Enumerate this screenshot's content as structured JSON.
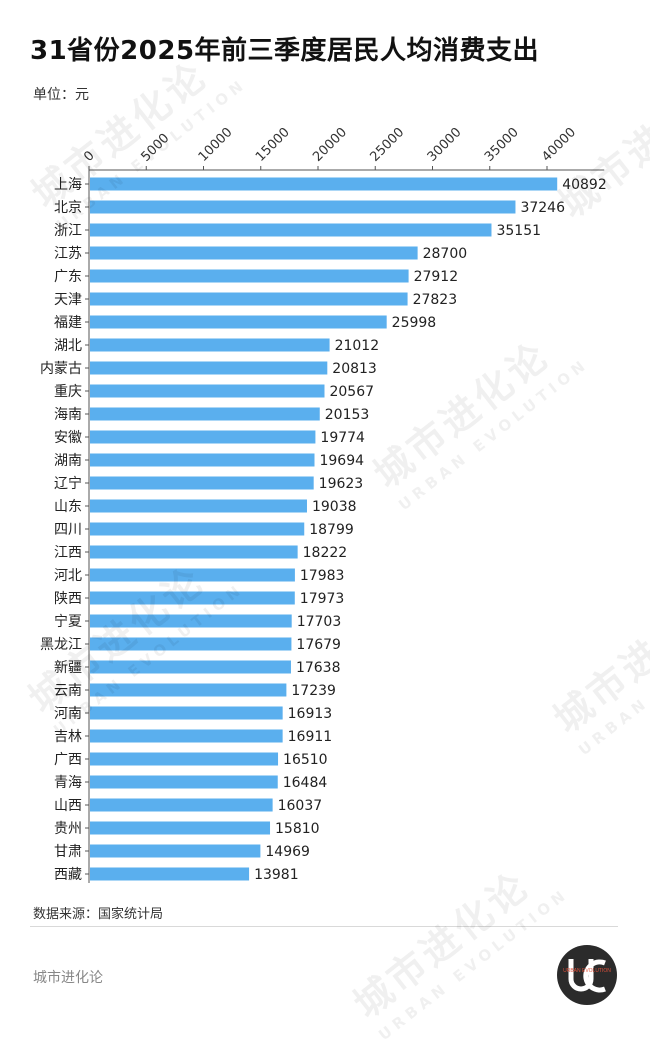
{
  "page": {
    "title": "31省份2025年前三季度居民人均消费支出",
    "unit": "单位：元",
    "source": "数据来源：国家统计局",
    "brand": "城市进化论",
    "logo_text": "URBAN EVOLUTION",
    "watermark_cn": "城市进化论",
    "watermark_en": "URBAN EVOLUTION"
  },
  "colors": {
    "bar": "#5aafee",
    "axis": "#555555",
    "text": "#222222"
  },
  "chart_data": {
    "type": "bar",
    "orientation": "horizontal",
    "title": "31省份2025年前三季度居民人均消费支出",
    "xlabel": "",
    "ylabel": "",
    "unit": "单位：元",
    "xlim": [
      0,
      45000
    ],
    "ticks": [
      0,
      5000,
      10000,
      15000,
      20000,
      25000,
      30000,
      35000,
      40000
    ],
    "x_axis_position": "top",
    "grid": false,
    "categories": [
      "上海",
      "北京",
      "浙江",
      "江苏",
      "广东",
      "天津",
      "福建",
      "湖北",
      "内蒙古",
      "重庆",
      "海南",
      "安徽",
      "湖南",
      "辽宁",
      "山东",
      "四川",
      "江西",
      "河北",
      "陕西",
      "宁夏",
      "黑龙江",
      "新疆",
      "云南",
      "河南",
      "吉林",
      "广西",
      "青海",
      "山西",
      "贵州",
      "甘肃",
      "西藏"
    ],
    "values": [
      40892,
      37246,
      35151,
      28700,
      27912,
      27823,
      25998,
      21012,
      20813,
      20567,
      20153,
      19774,
      19694,
      19623,
      19038,
      18799,
      18222,
      17983,
      17973,
      17703,
      17679,
      17638,
      17239,
      16913,
      16911,
      16510,
      16484,
      16037,
      15810,
      14969,
      13981
    ]
  }
}
